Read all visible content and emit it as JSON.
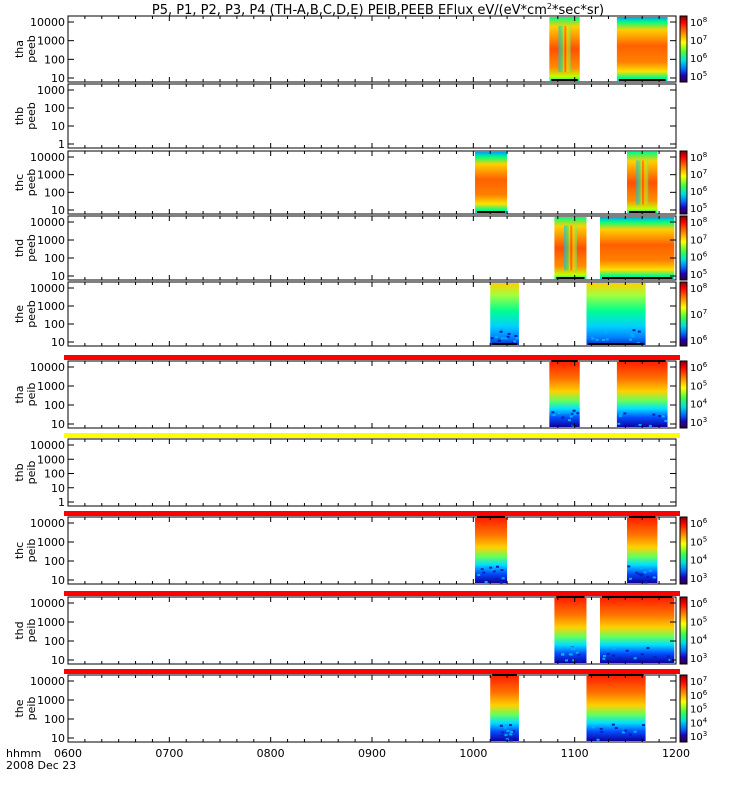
{
  "chart_data": {
    "type": "heatmap",
    "title": "P5, P1, P2, P3, P4 (TH-A,B,C,D,E) PEIB,PEEB EFlux eV/(eV*cm",
    "title_sup": "2",
    "title_tail": "*sec*sr)",
    "x_axis": {
      "label": "hhmm",
      "date": "2008 Dec 23",
      "ticks": [
        "0600",
        "0700",
        "0800",
        "0900",
        "1000",
        "1100",
        "1200"
      ],
      "range": [
        "06:00",
        "12:00"
      ]
    },
    "panels": [
      {
        "label_line1": "tha",
        "label_line2": "peeb",
        "y_ticks": [
          "10000",
          "1000",
          "100",
          "10"
        ],
        "y_scale": "log",
        "colorbar": {
          "base": "10",
          "exponents": [
            "8",
            "7",
            "6",
            "5"
          ]
        },
        "data_blocks": [
          {
            "start": "10:45",
            "end": "11:03",
            "shape": "v"
          },
          {
            "start": "11:25",
            "end": "11:55",
            "shape": "broad"
          }
        ]
      },
      {
        "label_line1": "thb",
        "label_line2": "peeb",
        "y_ticks": [
          "1000",
          "100",
          "10",
          "1"
        ],
        "y_scale": "log",
        "colorbar": null,
        "data_blocks": []
      },
      {
        "label_line1": "thc",
        "label_line2": "peeb",
        "y_ticks": [
          "10000",
          "1000",
          "100",
          "10"
        ],
        "y_scale": "log",
        "colorbar": {
          "base": "10",
          "exponents": [
            "8",
            "7",
            "6",
            "5"
          ]
        },
        "data_blocks": [
          {
            "start": "10:01",
            "end": "10:20",
            "shape": "broad"
          },
          {
            "start": "11:31",
            "end": "11:49",
            "shape": "v"
          }
        ]
      },
      {
        "label_line1": "thd",
        "label_line2": "peeb",
        "y_ticks": [
          "10000",
          "1000",
          "100",
          "10"
        ],
        "y_scale": "log",
        "colorbar": {
          "base": "10",
          "exponents": [
            "8",
            "7",
            "6",
            "5"
          ]
        },
        "data_blocks": [
          {
            "start": "10:48",
            "end": "11:07",
            "shape": "v"
          },
          {
            "start": "11:15",
            "end": "11:59",
            "shape": "broad"
          }
        ]
      },
      {
        "label_line1": "the",
        "label_line2": "peeb",
        "y_ticks": [
          "10000",
          "1000",
          "100",
          "10"
        ],
        "y_scale": "log",
        "colorbar": {
          "base": "10",
          "exponents": [
            "8",
            "7",
            "6"
          ]
        },
        "data_blocks": [
          {
            "start": "10:10",
            "end": "10:27",
            "shape": "cool"
          },
          {
            "start": "11:07",
            "end": "11:42",
            "shape": "cool"
          }
        ]
      },
      {
        "label_line1": "tha",
        "label_line2": "peib",
        "y_ticks": [
          "10000",
          "1000",
          "100",
          "10"
        ],
        "y_scale": "log",
        "colorbar": {
          "base": "10",
          "exponents": [
            "6",
            "5",
            "4",
            "3"
          ]
        },
        "data_blocks": [
          {
            "start": "10:45",
            "end": "11:03",
            "shape": "ion"
          },
          {
            "start": "11:25",
            "end": "11:55",
            "shape": "ion"
          }
        ]
      },
      {
        "label_line1": "thb",
        "label_line2": "peib",
        "y_ticks": [
          "10000",
          "1000",
          "100",
          "10",
          "1"
        ],
        "y_scale": "log",
        "colorbar": null,
        "data_blocks": []
      },
      {
        "label_line1": "thc",
        "label_line2": "peib",
        "y_ticks": [
          "10000",
          "1000",
          "100",
          "10"
        ],
        "y_scale": "log",
        "colorbar": {
          "base": "10",
          "exponents": [
            "6",
            "5",
            "4",
            "3"
          ]
        },
        "data_blocks": [
          {
            "start": "10:01",
            "end": "10:20",
            "shape": "ion"
          },
          {
            "start": "11:31",
            "end": "11:49",
            "shape": "ion"
          }
        ]
      },
      {
        "label_line1": "thd",
        "label_line2": "peib",
        "y_ticks": [
          "10000",
          "1000",
          "100",
          "10"
        ],
        "y_scale": "log",
        "colorbar": {
          "base": "10",
          "exponents": [
            "6",
            "5",
            "4",
            "3"
          ]
        },
        "data_blocks": [
          {
            "start": "10:48",
            "end": "11:07",
            "shape": "ion"
          },
          {
            "start": "11:15",
            "end": "11:59",
            "shape": "ion"
          }
        ]
      },
      {
        "label_line1": "the",
        "label_line2": "peib",
        "y_ticks": [
          "10000",
          "1000",
          "100",
          "10"
        ],
        "y_scale": "log",
        "colorbar": {
          "base": "10",
          "exponents": [
            "7",
            "6",
            "5",
            "4",
            "3"
          ]
        },
        "data_blocks": [
          {
            "start": "10:10",
            "end": "10:27",
            "shape": "ion"
          },
          {
            "start": "11:07",
            "end": "11:42",
            "shape": "ion"
          }
        ]
      }
    ],
    "status_bars": [
      {
        "color": "#ff0000"
      },
      {
        "color": "#ffff00"
      },
      {
        "color": "#ff0000"
      },
      {
        "color": "#ff0000"
      },
      {
        "color": "#ff0000"
      }
    ]
  }
}
